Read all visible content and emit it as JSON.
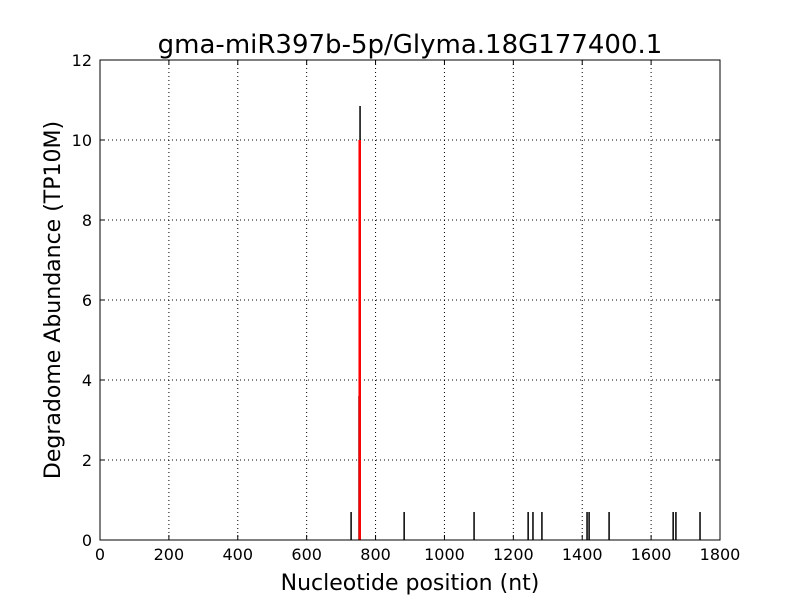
{
  "chart_data": {
    "type": "bar",
    "title": "gma-miR397b-5p/Glyma.18G177400.1",
    "xlabel": "Nucleotide position (nt)",
    "ylabel": "Degradome Abundance (TP10M)",
    "xlim": [
      0,
      1800
    ],
    "ylim": [
      0,
      12
    ],
    "xticks": [
      0,
      200,
      400,
      600,
      800,
      1000,
      1200,
      1400,
      1600,
      1800
    ],
    "yticks": [
      0,
      2,
      4,
      6,
      8,
      10,
      12
    ],
    "grid": true,
    "series": [
      {
        "color": "#000000",
        "points": [
          {
            "x": 729,
            "y": 0.7
          },
          {
            "x": 752,
            "y": 3.6
          },
          {
            "x": 755,
            "y": 10.85
          },
          {
            "x": 883,
            "y": 0.7
          },
          {
            "x": 1086,
            "y": 0.7
          },
          {
            "x": 1243,
            "y": 0.7
          },
          {
            "x": 1257,
            "y": 0.7
          },
          {
            "x": 1283,
            "y": 0.7
          },
          {
            "x": 1414,
            "y": 0.7
          },
          {
            "x": 1420,
            "y": 0.7
          },
          {
            "x": 1478,
            "y": 0.7
          },
          {
            "x": 1664,
            "y": 0.7
          },
          {
            "x": 1672,
            "y": 0.7
          },
          {
            "x": 1742,
            "y": 0.7
          }
        ]
      },
      {
        "color": "#ff0000",
        "points": [
          {
            "x": 754,
            "y": 10
          }
        ]
      }
    ]
  }
}
